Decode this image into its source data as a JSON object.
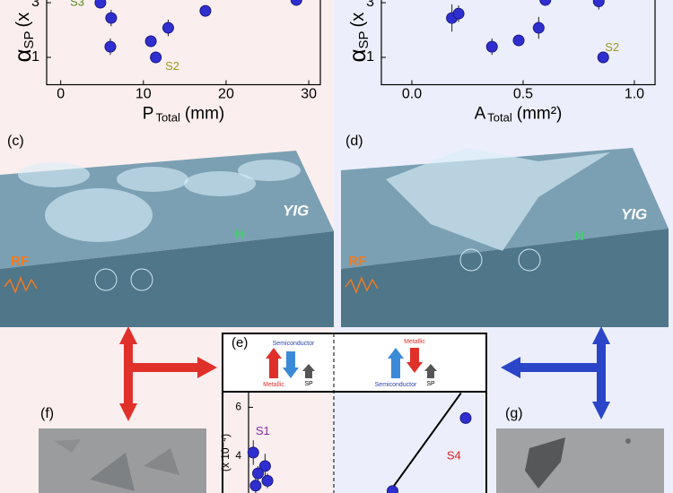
{
  "chart_data": [
    {
      "type": "scatter",
      "xlabel": [
        "P",
        "Total",
        "(mm)"
      ],
      "ylabel": [
        "α",
        "SP",
        "(x"
      ],
      "xlim": [
        -1.7,
        31.4
      ],
      "ylim": [
        0,
        3.4
      ],
      "xticks": [
        0,
        10,
        20,
        30
      ],
      "yticks": [
        1,
        3
      ],
      "color": "#2f2fd0",
      "x": [
        4.8,
        6.1,
        6.0,
        10.9,
        11.5,
        13.0,
        17.5,
        28.5
      ],
      "y": [
        3.0,
        2.44,
        1.39,
        1.59,
        1.0,
        2.08,
        2.7,
        3.1
      ],
      "yerr": [
        0.2,
        0.3,
        0.3,
        0.2,
        0.1,
        0.3,
        0.2,
        0.2
      ],
      "annotations": [
        {
          "text": "S3",
          "x": 2.0,
          "y": 3.0,
          "color": "#5a8a1c"
        },
        {
          "text": "S2",
          "x": 13.5,
          "y": 0.65,
          "color": "#9a9a20"
        }
      ]
    },
    {
      "type": "scatter",
      "xlabel": [
        "A",
        "Total",
        "(mm²)"
      ],
      "ylabel": [
        "α",
        "SP",
        "(x"
      ],
      "xlim": [
        -0.137,
        1.093
      ],
      "ylim": [
        0,
        3.4
      ],
      "xticks": [
        {
          "value": 0,
          "label": "0.0"
        },
        0.5,
        {
          "value": 1,
          "label": "1.0"
        }
      ],
      "yticks": [
        1,
        3
      ],
      "color": "#2f2fd0",
      "x": [
        0.18,
        0.21,
        0.36,
        0.48,
        0.57,
        0.6,
        0.84,
        0.86
      ],
      "y": [
        2.44,
        2.6,
        1.39,
        1.62,
        2.08,
        3.1,
        3.05,
        1.0
      ],
      "yerr": [
        0.5,
        0.3,
        0.3,
        0.2,
        0.4,
        0.2,
        0.3,
        0.1
      ],
      "annotations": [
        {
          "text": "S2",
          "x": 0.9,
          "y": 1.35,
          "color": "#9a9a20"
        }
      ]
    },
    {
      "type": "scatter",
      "ylabel": "(x 10⁻⁴)",
      "xlim": [
        0,
        1
      ],
      "ylim": [
        2.5,
        6.6
      ],
      "yticks": [
        4,
        6
      ],
      "color": "#2f2fd0",
      "x": [
        0.02,
        0.07,
        0.04,
        0.08,
        0.03,
        0.61,
        0.92
      ],
      "y": [
        4.15,
        3.6,
        3.3,
        3.0,
        2.8,
        2.58,
        5.56
      ],
      "yerr": [
        0.5,
        0.5,
        0.3,
        0.3,
        0.3,
        0.2,
        0.2
      ],
      "fit": {
        "x": [
          0.6,
          0.9
        ],
        "y": [
          2.58,
          6.58
        ]
      },
      "annotations": [
        {
          "text": "S1",
          "x": 0.06,
          "y": 5.0,
          "color": "#8a2aa8"
        },
        {
          "text": "S4",
          "x": 0.87,
          "y": 4.0,
          "color": "#e02020"
        }
      ]
    }
  ],
  "panels": {
    "c": "(c)",
    "d": "(d)",
    "e": "(e)",
    "f": "(f)",
    "g": "(g)",
    "material": "YIG",
    "rf": "RF",
    "field": "H",
    "legend_left": {
      "up": "Metallic",
      "down": "Semiconductor",
      "sp": "SP"
    },
    "legend_right": {
      "up": "Semiconductor",
      "down": "Metallic",
      "sp": "SP"
    }
  }
}
